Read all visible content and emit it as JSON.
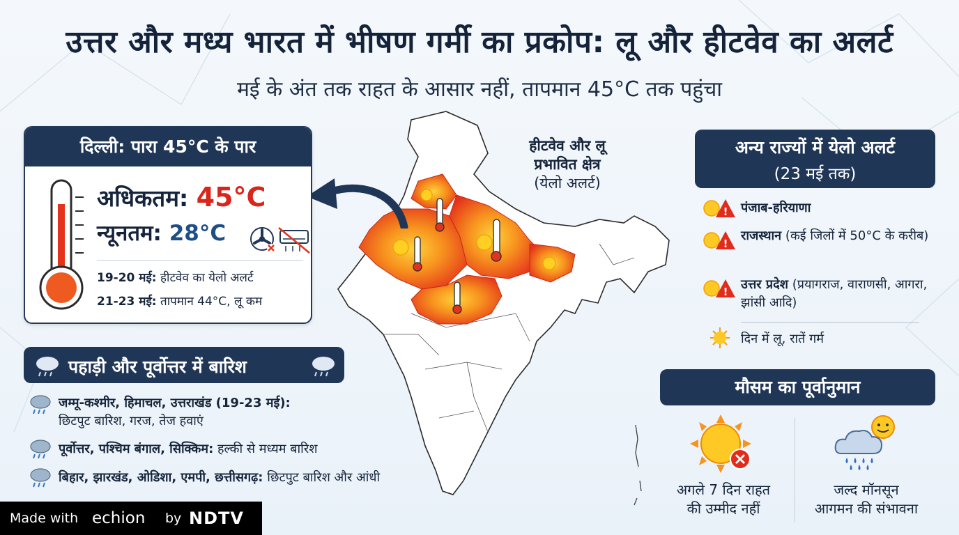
{
  "headline": "उत्तर और मध्य भारत में भीषण गर्मी का प्रकोप: लू और हीटवेव का अलर्ट",
  "subheadline": "मई के अंत तक राहत के आसार नहीं, तापमान 45°C तक पहुंचा",
  "map_label": {
    "line1": "हीटवेव और लू",
    "line2": "प्रभावित क्षेत्र",
    "line3": "(येलो अलर्ट)"
  },
  "delhi": {
    "title": "दिल्ली: पारा 45°C के पार",
    "max_label": "अधिकतम:",
    "max_value": "45°C",
    "min_label": "न्यूनतम:",
    "min_value": "28°C",
    "line1_date": "19-20 मई:",
    "line1_text": "हीटवेव का येलो अलर्ट",
    "line2_date": "21-23 मई:",
    "line2_text": "तापमान 44°C, लू कम"
  },
  "rain": {
    "title": "पहाड़ी और पूर्वोत्तर में बारिश",
    "items": [
      {
        "region": "जम्मू-कश्मीर, हिमाचल, उत्तराखंड (19-23 मई):",
        "detail": "छिटपुट बारिश, गरज, तेज हवाएं"
      },
      {
        "region": "पूर्वोत्तर, पश्चिम बंगाल, सिक्किम:",
        "detail": "हल्की से मध्यम बारिश"
      },
      {
        "region": "बिहार, झारखंड, ओडिशा, एमपी, छत्तीसगढ़:",
        "detail": "छिटपुट बारिश और आंधी"
      }
    ]
  },
  "alerts": {
    "title_line1": "अन्य राज्यों में येलो अलर्ट",
    "title_line2": "(23 मई तक)",
    "items": [
      {
        "state": "पंजाब-हरियाणा",
        "detail": ""
      },
      {
        "state": "राजस्थान",
        "detail": "(कई जिलों में 50°C के करीब)"
      },
      {
        "state": "उत्तर प्रदेश",
        "detail": "(प्रयागराज, वाराणसी, आगरा, झांसी आदि)"
      }
    ],
    "note": "दिन में लू, रातें गर्म"
  },
  "forecast": {
    "title": "मौसम का पूर्वानुमान",
    "left_line1": "अगले 7 दिन राहत",
    "left_line2": "की उम्मीद नहीं",
    "right_line1": "जल्द मॉनसून",
    "right_line2": "आगमन की संभावना"
  },
  "footer": {
    "made_with": "Made with",
    "echion": "echion",
    "by": "by",
    "ndtv": "NDTV"
  },
  "colors": {
    "navy": "#1f3657",
    "red": "#d9261c",
    "heat_orange": "#f07a1a",
    "heat_red": "#e4321b"
  }
}
